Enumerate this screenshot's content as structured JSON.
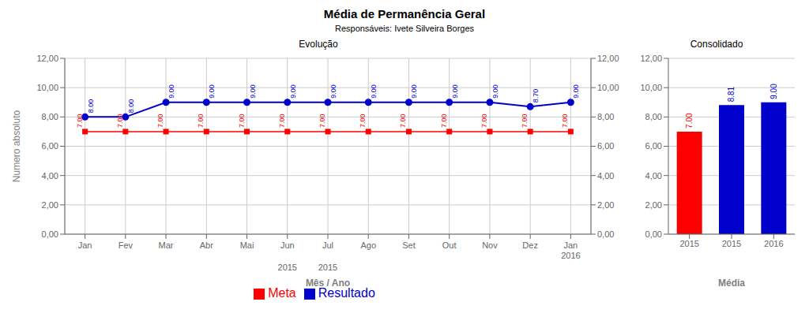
{
  "title": "Média de Permanência Geral",
  "subtitle": "Responsáveis: Ivete Silveira Borges",
  "chart_data": [
    {
      "type": "line",
      "title": "Evolução",
      "xlabel": "Mês / Ano",
      "ylabel": "Numero absoluto",
      "categories": [
        "Jan",
        "Fev",
        "Mar",
        "Abr",
        "Mai",
        "Jun",
        "Jul",
        "Ago",
        "Set",
        "Out",
        "Nov",
        "Dez",
        "Jan\n2016"
      ],
      "series": [
        {
          "name": "Meta",
          "color": "#ff0000",
          "marker": "square",
          "values": [
            7.0,
            7.0,
            7.0,
            7.0,
            7.0,
            7.0,
            7.0,
            7.0,
            7.0,
            7.0,
            7.0,
            7.0,
            7.0
          ],
          "value_labels": [
            "7.00",
            "7.00",
            "7.00",
            "7.00",
            "7.00",
            "7.00",
            "7.00",
            "7.00",
            "7.00",
            "7.00",
            "7.00",
            "7.00",
            "7.00"
          ]
        },
        {
          "name": "Resultado",
          "color": "#0000cc",
          "marker": "circle",
          "values": [
            8.0,
            8.0,
            9.0,
            9.0,
            9.0,
            9.0,
            9.0,
            9.0,
            9.0,
            9.0,
            9.0,
            8.7,
            9.0
          ],
          "value_labels": [
            "8.00",
            "8.00",
            "9.00",
            "9.00",
            "9.00",
            "9.00",
            "9.00",
            "9.00",
            "9.00",
            "9.00",
            "9.00",
            "8.70",
            "9.00"
          ]
        }
      ],
      "ylim": [
        0,
        12
      ],
      "yticks": [
        {
          "value": 0,
          "label": "0,00"
        },
        {
          "value": 2,
          "label": "2,00"
        },
        {
          "value": 4,
          "label": "4,00"
        },
        {
          "value": 6,
          "label": "6,00"
        },
        {
          "value": 8,
          "label": "8,00"
        },
        {
          "value": 10,
          "label": "10,00"
        },
        {
          "value": 12,
          "label": "12,00"
        }
      ],
      "y2lim": [
        0,
        12
      ],
      "y2ticks": [
        {
          "value": 0,
          "label": "0,00"
        },
        {
          "value": 2,
          "label": "2,00"
        },
        {
          "value": 4,
          "label": "4,00"
        },
        {
          "value": 6,
          "label": "6,00"
        },
        {
          "value": 8,
          "label": "8,00"
        },
        {
          "value": 10,
          "label": "10,00"
        },
        {
          "value": 12,
          "label": "12,00"
        }
      ],
      "grid": true,
      "legend": "bottom",
      "data_labels": true,
      "annotations": [
        "2015",
        "2015"
      ]
    },
    {
      "type": "bar",
      "title": "Consolidado",
      "xlabel": "Média",
      "categories": [
        "2015",
        "2015",
        "2016"
      ],
      "values": [
        7.0,
        8.81,
        9.0
      ],
      "value_labels": [
        "7.00",
        "8.81",
        "9.00"
      ],
      "colors": [
        "#ff0000",
        "#0000cc",
        "#0000cc"
      ],
      "ylim": [
        0,
        12
      ],
      "yticks": [
        {
          "value": 0,
          "label": "0,00"
        },
        {
          "value": 2,
          "label": "2,00"
        },
        {
          "value": 4,
          "label": "4,00"
        },
        {
          "value": 6,
          "label": "6,00"
        },
        {
          "value": 8,
          "label": "8,00"
        },
        {
          "value": 10,
          "label": "10,00"
        },
        {
          "value": 12,
          "label": "12,00"
        }
      ],
      "grid": "y",
      "data_labels": true
    }
  ]
}
